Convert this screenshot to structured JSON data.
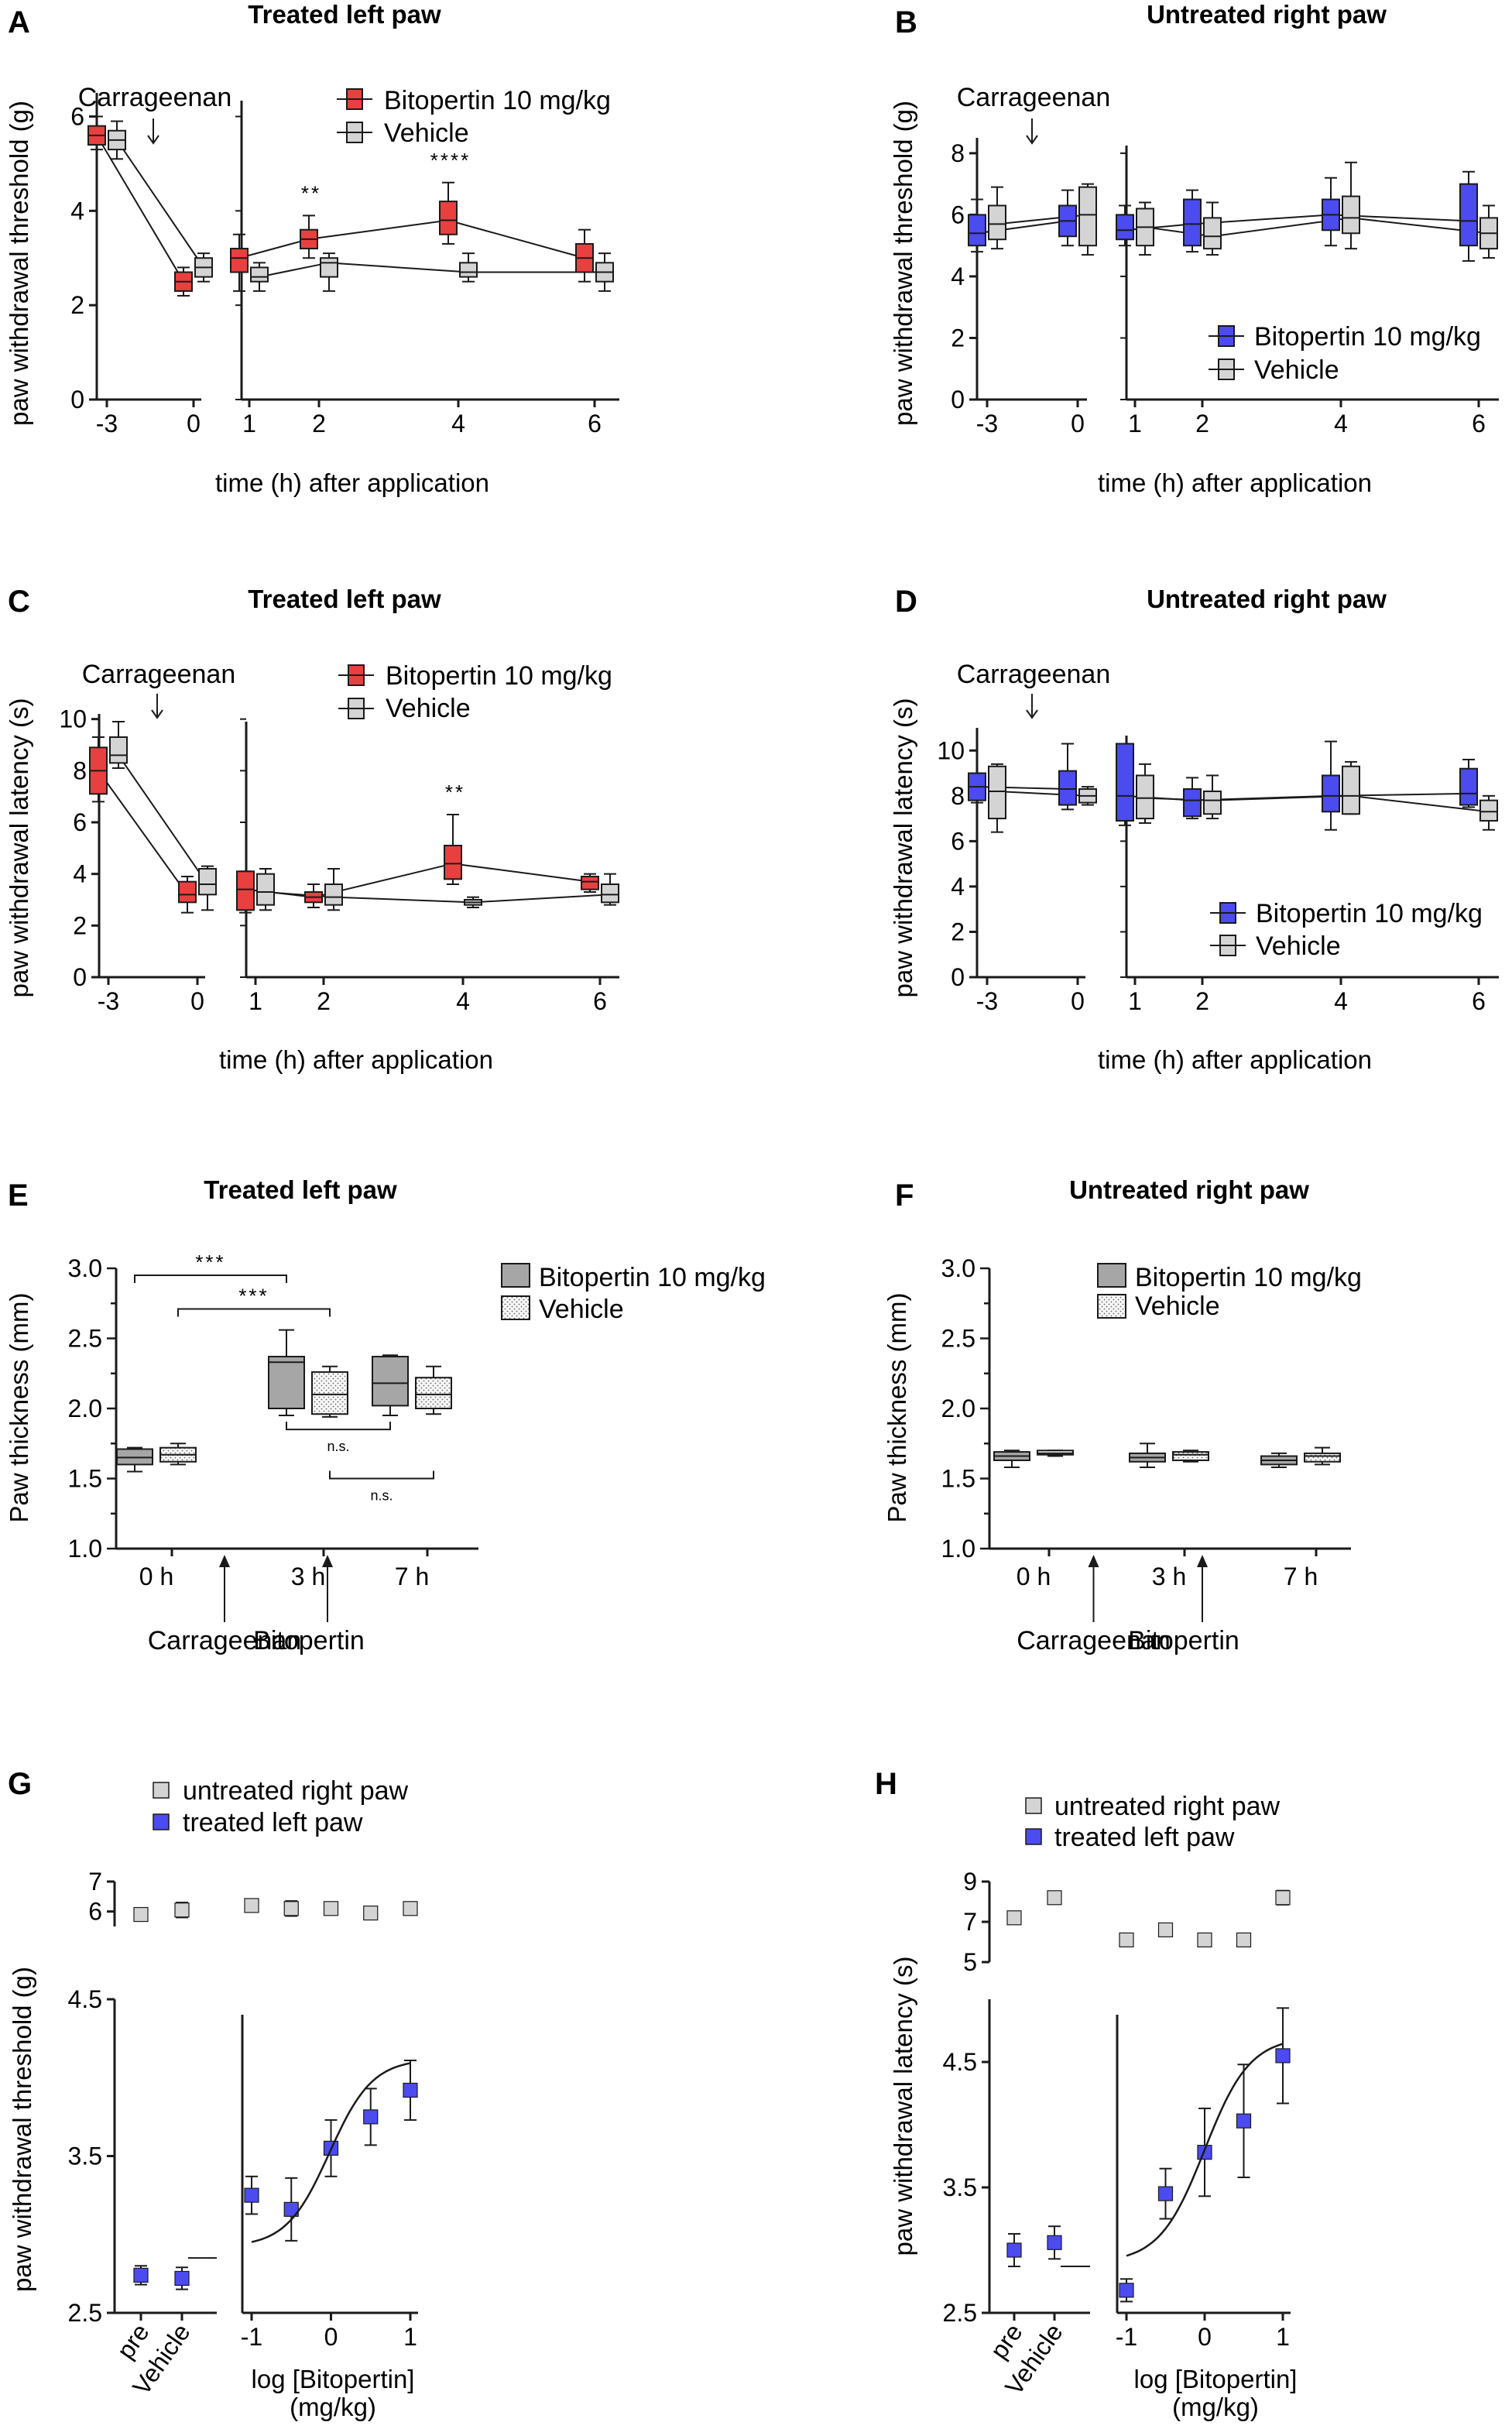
{
  "colors": {
    "red": "#e8403f",
    "blue": "#4b4bf0",
    "grey": "#d4d4d4",
    "darkgrey": "#a6a6a6",
    "dotted": "#f2f2f2",
    "line": "#1a1a1a"
  },
  "chart_data": [
    {
      "id": "A",
      "type": "box",
      "title": "Treated left paw",
      "ylabel": "paw withdrawal threshold (g)",
      "xlabel": "time (h) after application",
      "ylim": [
        0,
        6.5
      ],
      "yticks": [
        "0",
        "2",
        "4",
        "6"
      ],
      "xticks": [
        "-3",
        "0",
        "1",
        "2",
        "4",
        "6"
      ],
      "annotation": "Carrageenan",
      "legend": [
        "Bitopertin 10 mg/kg",
        "Vehicle"
      ],
      "stars": [
        {
          "x": "2",
          "label": "**"
        },
        {
          "x": "4",
          "label": "****"
        }
      ],
      "series": [
        {
          "name": "Bitopertin 10 mg/kg",
          "x": [
            "-3",
            "0",
            "1",
            "2",
            "4",
            "6"
          ],
          "median": [
            5.6,
            2.5,
            3.0,
            3.4,
            3.8,
            3.0
          ],
          "q1": [
            5.4,
            2.3,
            2.7,
            3.2,
            3.5,
            2.7
          ],
          "q3": [
            5.8,
            2.7,
            3.2,
            3.6,
            4.2,
            3.3
          ],
          "min": [
            5.3,
            2.2,
            2.3,
            3.0,
            3.3,
            2.5
          ],
          "max": [
            6.0,
            2.8,
            3.5,
            3.9,
            4.6,
            3.6
          ]
        },
        {
          "name": "Vehicle",
          "x": [
            "-3",
            "0",
            "1",
            "2",
            "4",
            "6"
          ],
          "median": [
            5.5,
            2.8,
            2.6,
            2.9,
            2.7,
            2.7
          ],
          "q1": [
            5.3,
            2.6,
            2.5,
            2.6,
            2.6,
            2.5
          ],
          "q3": [
            5.7,
            3.0,
            2.8,
            3.0,
            2.9,
            2.9
          ],
          "min": [
            5.1,
            2.5,
            2.3,
            2.3,
            2.5,
            2.3
          ],
          "max": [
            5.9,
            3.1,
            2.9,
            3.1,
            3.1,
            3.1
          ]
        }
      ]
    },
    {
      "id": "B",
      "type": "box",
      "title": "Untreated right paw",
      "ylabel": "paw withdrawal threshold (g)",
      "xlabel": "time (h) after application",
      "ylim": [
        0,
        8.5
      ],
      "yticks": [
        "0",
        "2",
        "4",
        "6",
        "8"
      ],
      "xticks": [
        "-3",
        "0",
        "1",
        "2",
        "4",
        "6"
      ],
      "annotation": "Carrageenan",
      "legend": [
        "Bitopertin 10 mg/kg",
        "Vehicle"
      ],
      "stars": [],
      "series": [
        {
          "name": "Bitopertin 10 mg/kg",
          "x": [
            "-3",
            "0",
            "1",
            "2",
            "4",
            "6"
          ],
          "median": [
            5.4,
            5.8,
            5.5,
            5.7,
            6.0,
            5.8
          ],
          "q1": [
            5.0,
            5.3,
            5.2,
            5.0,
            5.5,
            5.0
          ],
          "q3": [
            6.0,
            6.3,
            6.0,
            6.5,
            6.5,
            7.0
          ],
          "min": [
            4.8,
            5.0,
            5.0,
            4.8,
            5.0,
            4.5
          ],
          "max": [
            6.5,
            6.8,
            6.3,
            6.8,
            7.2,
            7.4
          ]
        },
        {
          "name": "Vehicle",
          "x": [
            "-3",
            "0",
            "1",
            "2",
            "4",
            "6"
          ],
          "median": [
            5.7,
            6.0,
            5.6,
            5.3,
            5.9,
            5.4
          ],
          "q1": [
            5.2,
            5.0,
            5.0,
            4.9,
            5.4,
            4.9
          ],
          "q3": [
            6.3,
            6.9,
            6.2,
            5.9,
            6.6,
            5.9
          ],
          "min": [
            4.9,
            4.7,
            4.7,
            4.7,
            4.9,
            4.6
          ],
          "max": [
            6.9,
            7.0,
            6.4,
            6.4,
            7.7,
            6.3
          ]
        }
      ]
    },
    {
      "id": "C",
      "type": "box",
      "title": "Treated left paw",
      "ylabel": "paw withdrawal latency (s)",
      "xlabel": "time (h) after application",
      "ylim": [
        0,
        10.2
      ],
      "yticks": [
        "0",
        "2",
        "4",
        "6",
        "8",
        "10"
      ],
      "xticks": [
        "-3",
        "0",
        "1",
        "2",
        "4",
        "6"
      ],
      "annotation": "Carrageenan",
      "legend": [
        "Bitopertin 10 mg/kg",
        "Vehicle"
      ],
      "stars": [
        {
          "x": "4",
          "label": "**"
        }
      ],
      "series": [
        {
          "name": "Bitopertin 10 mg/kg",
          "x": [
            "-3",
            "0",
            "1",
            "2",
            "4",
            "6"
          ],
          "median": [
            8.0,
            3.2,
            3.4,
            3.1,
            4.4,
            3.7
          ],
          "q1": [
            7.1,
            2.9,
            2.6,
            2.9,
            3.8,
            3.4
          ],
          "q3": [
            8.9,
            3.7,
            4.1,
            3.3,
            5.1,
            3.9
          ],
          "min": [
            6.8,
            2.5,
            2.5,
            2.7,
            3.6,
            3.3
          ],
          "max": [
            9.3,
            3.9,
            4.1,
            3.6,
            6.3,
            4.0
          ]
        },
        {
          "name": "Vehicle",
          "x": [
            "-3",
            "0",
            "1",
            "2",
            "4",
            "6"
          ],
          "median": [
            8.6,
            3.6,
            3.3,
            3.1,
            2.9,
            3.2
          ],
          "q1": [
            8.3,
            3.2,
            2.8,
            2.8,
            2.8,
            2.9
          ],
          "q3": [
            9.3,
            4.2,
            4.0,
            3.6,
            3.0,
            3.6
          ],
          "min": [
            8.1,
            2.6,
            2.6,
            2.6,
            2.7,
            2.8
          ],
          "max": [
            9.9,
            4.3,
            4.2,
            4.2,
            3.1,
            4.0
          ]
        }
      ]
    },
    {
      "id": "D",
      "type": "box",
      "title": "Untreated right paw",
      "ylabel": "paw withdrawal latency (s)",
      "xlabel": "time (h) after application",
      "ylim": [
        0,
        11
      ],
      "yticks": [
        "0",
        "2",
        "4",
        "6",
        "8",
        "10"
      ],
      "xticks": [
        "-3",
        "0",
        "1",
        "2",
        "4",
        "6"
      ],
      "annotation": "Carrageenan",
      "legend": [
        "Bitopertin 10 mg/kg",
        "Vehicle"
      ],
      "stars": [],
      "series": [
        {
          "name": "Bitopertin 10 mg/kg",
          "x": [
            "-3",
            "0",
            "1",
            "2",
            "4",
            "6"
          ],
          "median": [
            8.4,
            8.3,
            8.0,
            7.8,
            8.0,
            8.1
          ],
          "q1": [
            7.8,
            7.6,
            6.9,
            7.1,
            7.3,
            7.6
          ],
          "q3": [
            9.0,
            9.1,
            10.3,
            8.3,
            8.9,
            9.2
          ],
          "min": [
            7.7,
            7.4,
            6.7,
            7.0,
            6.5,
            7.5
          ],
          "max": [
            9.0,
            10.3,
            10.3,
            8.8,
            10.4,
            9.6
          ]
        },
        {
          "name": "Vehicle",
          "x": [
            "-3",
            "0",
            "1",
            "2",
            "4",
            "6"
          ],
          "median": [
            8.2,
            8.0,
            7.9,
            7.8,
            8.0,
            7.3
          ],
          "q1": [
            7.0,
            7.7,
            7.0,
            7.2,
            7.2,
            6.9
          ],
          "q3": [
            9.3,
            8.3,
            8.9,
            8.2,
            9.3,
            7.8
          ],
          "min": [
            6.4,
            7.6,
            6.8,
            7.0,
            7.2,
            6.5
          ],
          "max": [
            9.4,
            8.4,
            9.4,
            8.9,
            9.5,
            8.0
          ]
        }
      ]
    },
    {
      "id": "E",
      "type": "box",
      "title": "Treated left paw",
      "ylabel": "Paw thickness (mm)",
      "xlabel": "",
      "ylim": [
        1.0,
        3.0
      ],
      "yticks": [
        "1.0",
        "1.5",
        "2.0",
        "2.5",
        "3.0"
      ],
      "categories": [
        "0 h",
        "3 h",
        "7 h"
      ],
      "arrows": [
        "Carrageenan",
        "Bitopertin"
      ],
      "legend": [
        "Bitopertin 10 mg/kg",
        "Vehicle"
      ],
      "brackets": [
        {
          "from": "0 h Bitopertin",
          "to": "3 h Bitopertin",
          "label": "***"
        },
        {
          "from": "0 h Vehicle",
          "to": "3 h Vehicle",
          "label": "***"
        },
        {
          "from": "3 h Bitopertin",
          "to": "7 h Bitopertin",
          "label": "n.s."
        },
        {
          "from": "3 h Vehicle",
          "to": "7 h Vehicle",
          "label": "n.s."
        }
      ],
      "series": [
        {
          "name": "Bitopertin 10 mg/kg",
          "median": [
            1.65,
            2.33,
            2.18
          ],
          "q1": [
            1.6,
            2.0,
            2.02
          ],
          "q3": [
            1.71,
            2.37,
            2.37
          ],
          "min": [
            1.55,
            1.95,
            1.95
          ],
          "max": [
            1.72,
            2.56,
            2.38
          ]
        },
        {
          "name": "Vehicle",
          "median": [
            1.67,
            2.1,
            2.1
          ],
          "q1": [
            1.62,
            1.96,
            2.0
          ],
          "q3": [
            1.72,
            2.26,
            2.22
          ],
          "min": [
            1.6,
            1.94,
            1.96
          ],
          "max": [
            1.75,
            2.3,
            2.3
          ]
        }
      ]
    },
    {
      "id": "F",
      "type": "box",
      "title": "Untreated right paw",
      "ylabel": "Paw thickness (mm)",
      "xlabel": "",
      "ylim": [
        1.0,
        3.0
      ],
      "yticks": [
        "1.0",
        "1.5",
        "2.0",
        "2.5",
        "3.0"
      ],
      "categories": [
        "0 h",
        "3 h",
        "7 h"
      ],
      "arrows": [
        "Carrageenan",
        "Bitopertin"
      ],
      "legend": [
        "Bitopertin 10 mg/kg",
        "Vehicle"
      ],
      "brackets": [],
      "series": [
        {
          "name": "Bitopertin 10 mg/kg",
          "median": [
            1.66,
            1.65,
            1.63
          ],
          "q1": [
            1.63,
            1.62,
            1.6
          ],
          "q3": [
            1.69,
            1.68,
            1.66
          ],
          "min": [
            1.58,
            1.58,
            1.58
          ],
          "max": [
            1.7,
            1.75,
            1.68
          ]
        },
        {
          "name": "Vehicle",
          "median": [
            1.68,
            1.67,
            1.66
          ],
          "q1": [
            1.67,
            1.63,
            1.62
          ],
          "q3": [
            1.7,
            1.69,
            1.68
          ],
          "min": [
            1.66,
            1.62,
            1.6
          ],
          "max": [
            1.7,
            1.7,
            1.72
          ]
        }
      ]
    },
    {
      "id": "G",
      "type": "scatter",
      "title": "",
      "ylabel": "paw withdrawal threshold (g)",
      "xlabel": "log [Bitopertin]",
      "xlabel2": "(mg/kg)",
      "xticks": [
        "-1",
        "0",
        "1"
      ],
      "xlim": [
        -1,
        1
      ],
      "top_axis": {
        "ylim": [
          5.5,
          7.0
        ],
        "yticks": [
          "6",
          "7"
        ]
      },
      "bottom_axis": {
        "ylim": [
          2.5,
          4.5
        ],
        "yticks": [
          "2.5",
          "3.5",
          "4.5"
        ]
      },
      "controls": [
        "pre",
        "Vehicle"
      ],
      "legend": [
        "untreated right paw",
        "treated left paw"
      ],
      "untreated": {
        "controls": [
          {
            "label": "pre",
            "y": 5.9,
            "err": 0.1
          },
          {
            "label": "Vehicle",
            "y": 6.05,
            "err": 0.25
          }
        ],
        "dose": [
          {
            "x": -1,
            "y": 6.2,
            "err": 0.1
          },
          {
            "x": -0.5,
            "y": 6.1,
            "err": 0.25
          },
          {
            "x": 0,
            "y": 6.1,
            "err": 0.2
          },
          {
            "x": 0.5,
            "y": 5.95,
            "err": 0.2
          },
          {
            "x": 1,
            "y": 6.1,
            "err": 0.2
          }
        ]
      },
      "treated": {
        "controls": [
          {
            "label": "pre",
            "y": 2.74,
            "err": 0.06
          },
          {
            "label": "Vehicle",
            "y": 2.72,
            "err": 0.07
          }
        ],
        "dose": [
          {
            "x": -1,
            "y": 3.25,
            "err": 0.12
          },
          {
            "x": -0.5,
            "y": 3.16,
            "err": 0.2
          },
          {
            "x": 0,
            "y": 3.55,
            "err": 0.18
          },
          {
            "x": 0.5,
            "y": 3.75,
            "err": 0.18
          },
          {
            "x": 1,
            "y": 3.92,
            "err": 0.19
          }
        ]
      },
      "fit": {
        "bottom": 2.92,
        "top": 4.12,
        "ec50_log": -0.02,
        "hill": 1.6
      },
      "vehicle_line_y": 2.85
    },
    {
      "id": "H",
      "type": "scatter",
      "title": "",
      "ylabel": "paw withdrawal latency (s)",
      "xlabel": "log [Bitopertin]",
      "xlabel2": "(mg/kg)",
      "xticks": [
        "-1",
        "0",
        "1"
      ],
      "xlim": [
        -1,
        1
      ],
      "top_axis": {
        "ylim": [
          5.0,
          9.0
        ],
        "yticks": [
          "5",
          "7",
          "9"
        ]
      },
      "bottom_axis": {
        "ylim": [
          2.5,
          5.0
        ],
        "yticks": [
          "2.5",
          "3.5",
          "4.5"
        ]
      },
      "controls": [
        "pre",
        "Vehicle"
      ],
      "legend": [
        "untreated right paw",
        "treated left paw"
      ],
      "untreated": {
        "controls": [
          {
            "label": "pre",
            "y": 7.2,
            "err": 0.2
          },
          {
            "label": "Vehicle",
            "y": 8.2,
            "err": 0.3
          }
        ],
        "dose": [
          {
            "x": -1,
            "y": 6.1,
            "err": 0.3
          },
          {
            "x": -0.5,
            "y": 6.6,
            "err": 0.3
          },
          {
            "x": 0,
            "y": 6.1,
            "err": 0.2
          },
          {
            "x": 0.5,
            "y": 6.1,
            "err": 0.15
          },
          {
            "x": 1,
            "y": 8.2,
            "err": 0.35
          }
        ]
      },
      "treated": {
        "controls": [
          {
            "label": "pre",
            "y": 3.0,
            "err": 0.13
          },
          {
            "label": "Vehicle",
            "y": 3.06,
            "err": 0.13
          }
        ],
        "dose": [
          {
            "x": -1,
            "y": 2.68,
            "err": 0.09
          },
          {
            "x": -0.5,
            "y": 3.45,
            "err": 0.2
          },
          {
            "x": 0,
            "y": 3.78,
            "err": 0.35
          },
          {
            "x": 0.5,
            "y": 4.03,
            "err": 0.45
          },
          {
            "x": 1,
            "y": 4.55,
            "err": 0.38
          }
        ]
      },
      "fit": {
        "bottom": 2.9,
        "top": 4.7,
        "ec50_log": 0.0,
        "hill": 1.5
      },
      "vehicle_line_y": 2.87
    }
  ]
}
